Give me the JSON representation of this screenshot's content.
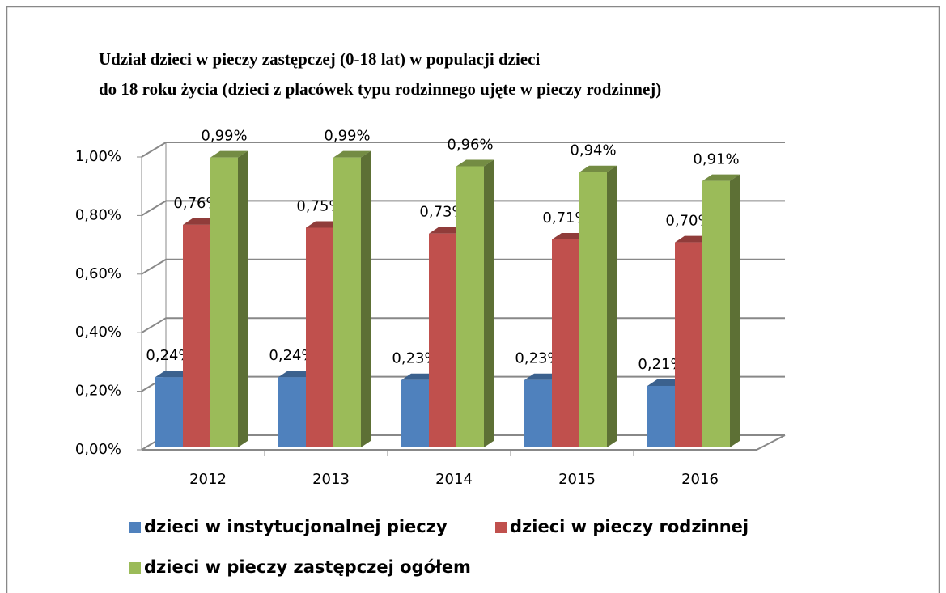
{
  "chart_data": {
    "type": "bar3d",
    "title": [
      "Udział dzieci w pieczy zastępczej  (0-18 lat)  w populacji dzieci",
      "do 18 roku życia (dzieci z placówek typu rodzinnego ujęte w  pieczy rodzinnej)"
    ],
    "categories": [
      "2012",
      "2013",
      "2014",
      "2015",
      "2016"
    ],
    "series": [
      {
        "name": "dzieci w instytucjonalnej pieczy",
        "color": "#4f81bd",
        "values": [
          0.24,
          0.24,
          0.23,
          0.23,
          0.21
        ],
        "value_labels": [
          "0,24%",
          "0,24%",
          "0,23%",
          "0,23%",
          "0,21%"
        ]
      },
      {
        "name": "dzieci w pieczy rodzinnej",
        "color": "#c0504d",
        "values": [
          0.76,
          0.75,
          0.73,
          0.71,
          0.7
        ],
        "value_labels": [
          "0,76%",
          "0,75%",
          "0,73%",
          "0,71%",
          "0,70%"
        ]
      },
      {
        "name": "dzieci w pieczy zastępczej ogółem",
        "color": "#9bbb59",
        "values": [
          0.99,
          0.99,
          0.96,
          0.94,
          0.91
        ],
        "value_labels": [
          "0,99%",
          "0,99%",
          "0,96%",
          "0,94%",
          "0,91%"
        ]
      }
    ],
    "ylim": [
      0,
      1
    ],
    "yticks": [
      {
        "value": 0,
        "label": "0,00%"
      },
      {
        "value": 0.2,
        "label": "0,20%"
      },
      {
        "value": 0.4,
        "label": "0,40%"
      },
      {
        "value": 0.6,
        "label": "0,60%"
      },
      {
        "value": 0.8,
        "label": "0,80%"
      },
      {
        "value": 1,
        "label": "1,00%"
      }
    ],
    "grid": true,
    "legend": "bottom"
  }
}
